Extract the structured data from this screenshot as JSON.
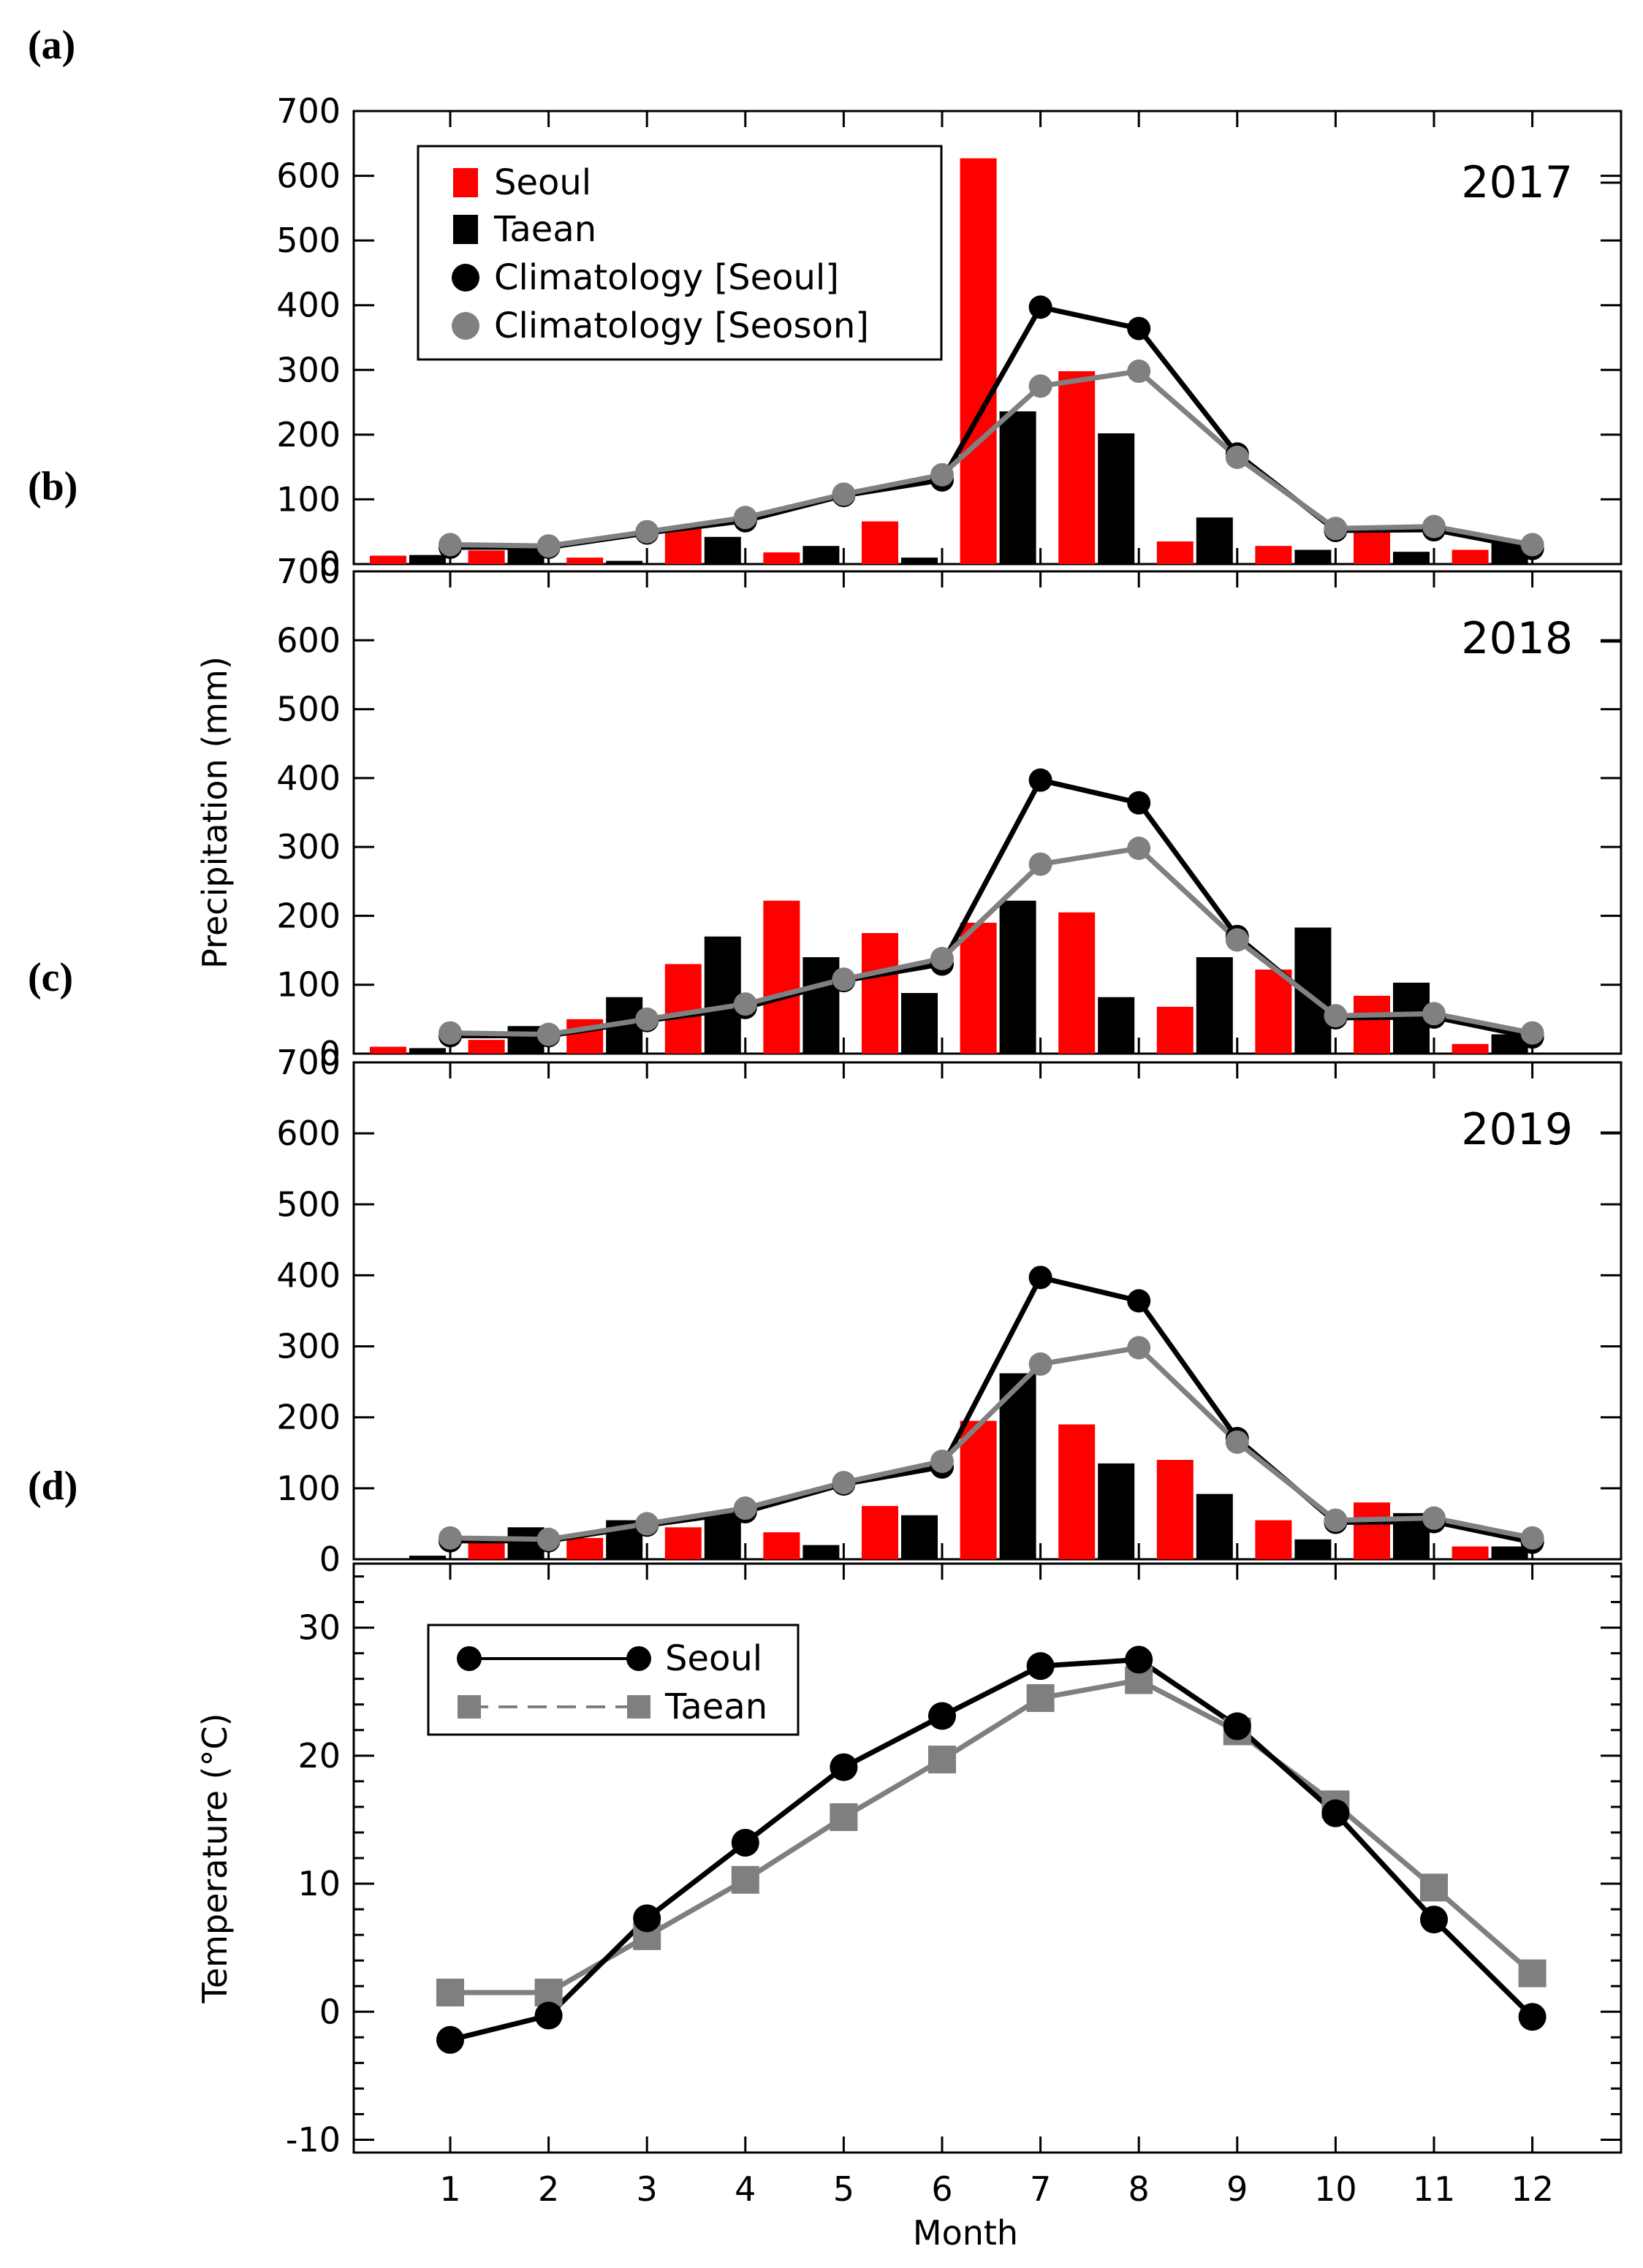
{
  "panel_labels": [
    "(a)",
    "(b)",
    "(c)",
    "(d)"
  ],
  "colors": {
    "seoul_bar": "#ff0000",
    "taean_bar": "#000000",
    "clim_seoul": "#000000",
    "clim_seoson": "#808080",
    "temp_seoul": "#000000",
    "temp_taean": "#7f7f7f"
  },
  "chart_data": [
    {
      "type": "bar",
      "year_label": "2017",
      "categories": [
        "1",
        "2",
        "3",
        "4",
        "5",
        "6",
        "7",
        "8",
        "9",
        "10",
        "11",
        "12"
      ],
      "series": [
        {
          "name": "Seoul",
          "values": [
            13,
            21,
            10,
            58,
            18,
            66,
            627,
            298,
            35,
            28,
            55,
            22
          ]
        },
        {
          "name": "Taean",
          "values": [
            14,
            24,
            5,
            42,
            28,
            10,
            236,
            202,
            72,
            22,
            19,
            32
          ]
        }
      ],
      "lines": [
        {
          "name": "Climatology [Seoul]",
          "values": [
            26,
            26,
            48,
            67,
            106,
            130,
            397,
            364,
            170,
            52,
            53,
            24
          ]
        },
        {
          "name": "Climatology [Seoson]",
          "values": [
            30,
            28,
            50,
            72,
            108,
            138,
            275,
            298,
            165,
            55,
            58,
            30
          ]
        }
      ],
      "legend": [
        "Seoul",
        "Taean",
        "Climatology [Seoul]",
        "Climatology [Seoson]"
      ],
      "ylim": [
        0,
        700
      ],
      "yticks": [
        "0",
        "100",
        "200",
        "300",
        "400",
        "500",
        "600",
        "700"
      ]
    },
    {
      "type": "bar",
      "year_label": "2018",
      "categories": [
        "1",
        "2",
        "3",
        "4",
        "5",
        "6",
        "7",
        "8",
        "9",
        "10",
        "11",
        "12"
      ],
      "series": [
        {
          "name": "Seoul",
          "values": [
            10,
            20,
            50,
            130,
            222,
            175,
            190,
            205,
            68,
            122,
            84,
            14
          ]
        },
        {
          "name": "Taean",
          "values": [
            8,
            40,
            82,
            170,
            140,
            88,
            222,
            82,
            140,
            183,
            103,
            28
          ]
        }
      ],
      "lines": [
        {
          "name": "Climatology [Seoul]",
          "values": [
            26,
            26,
            48,
            67,
            106,
            130,
            397,
            364,
            170,
            52,
            53,
            24
          ]
        },
        {
          "name": "Climatology [Seoson]",
          "values": [
            30,
            28,
            50,
            72,
            108,
            138,
            275,
            298,
            165,
            55,
            58,
            30
          ]
        }
      ],
      "ylim": [
        0,
        700
      ],
      "yticks": [
        "0",
        "100",
        "200",
        "300",
        "400",
        "500",
        "600",
        "700"
      ],
      "ylabel": "Precipitation (mm)"
    },
    {
      "type": "bar",
      "year_label": "2019",
      "categories": [
        "1",
        "2",
        "3",
        "4",
        "5",
        "6",
        "7",
        "8",
        "9",
        "10",
        "11",
        "12"
      ],
      "series": [
        {
          "name": "Seoul",
          "values": [
            0,
            25,
            30,
            45,
            38,
            75,
            195,
            190,
            140,
            55,
            80,
            18
          ]
        },
        {
          "name": "Taean",
          "values": [
            5,
            45,
            55,
            65,
            20,
            62,
            262,
            135,
            92,
            28,
            65,
            18
          ]
        }
      ],
      "lines": [
        {
          "name": "Climatology [Seoul]",
          "values": [
            26,
            26,
            48,
            67,
            106,
            130,
            397,
            364,
            170,
            52,
            53,
            24
          ]
        },
        {
          "name": "Climatology [Seoson]",
          "values": [
            30,
            28,
            50,
            72,
            108,
            138,
            275,
            298,
            165,
            55,
            58,
            30
          ]
        }
      ],
      "ylim": [
        0,
        700
      ],
      "yticks": [
        "0",
        "100",
        "200",
        "300",
        "400",
        "500",
        "600",
        "700"
      ]
    },
    {
      "type": "line",
      "x": [
        "1",
        "2",
        "3",
        "4",
        "5",
        "6",
        "7",
        "8",
        "9",
        "10",
        "11",
        "12"
      ],
      "series": [
        {
          "name": "Seoul",
          "values": [
            -2.2,
            -0.3,
            7.3,
            13.2,
            19.1,
            23.1,
            27.0,
            27.5,
            22.3,
            15.5,
            7.2,
            -0.4
          ]
        },
        {
          "name": "Taean",
          "values": [
            1.5,
            1.5,
            5.9,
            10.3,
            15.2,
            19.7,
            24.5,
            25.9,
            21.9,
            16.2,
            9.7,
            3.0
          ]
        }
      ],
      "legend": [
        "Seoul",
        "Taean"
      ],
      "ylim": [
        -11,
        35
      ],
      "yticks": [
        "-10",
        "0",
        "10",
        "20",
        "30"
      ],
      "ylabel": "Temperature (°C)",
      "xlabel": "Month"
    }
  ]
}
